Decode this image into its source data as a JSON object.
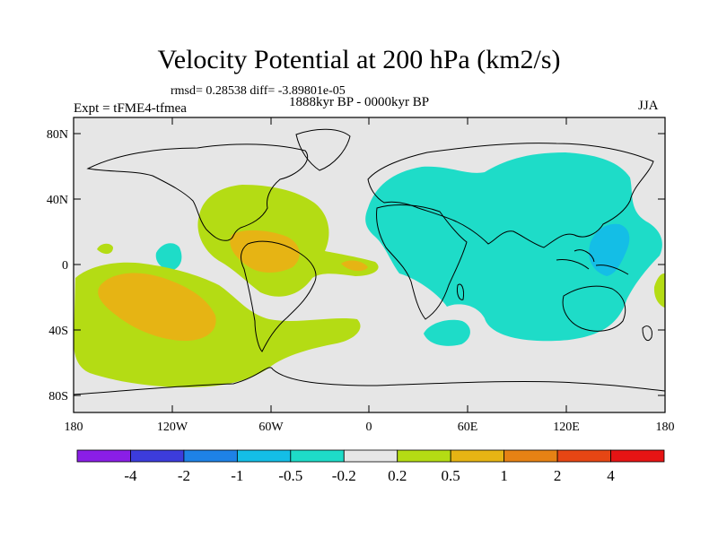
{
  "title": "Velocity Potential at 200 hPa (km2/s)",
  "stats": "rmsd= 0.28538 diff= -3.89801e-05",
  "period": "1888kyr BP - 0000kyr BP",
  "experiment": "Expt = tFME4-tfmea",
  "season": "JJA",
  "lat_ticks": [
    "80N",
    "40N",
    "0",
    "40S",
    "80S"
  ],
  "lon_ticks": [
    "180",
    "120W",
    "60W",
    "0",
    "60E",
    "120E",
    "180"
  ],
  "colorbar": {
    "labels": [
      "-4",
      "-2",
      "-1",
      "-0.5",
      "-0.2",
      "0.2",
      "0.5",
      "1",
      "2",
      "4"
    ],
    "colors": [
      "#8a1ee6",
      "#3c3cdc",
      "#1e82e6",
      "#14bee6",
      "#1edcc8",
      "#e6e6e6",
      "#b4dc14",
      "#e6b414",
      "#e68214",
      "#e64614",
      "#e61414"
    ]
  },
  "chart_data": {
    "type": "contour_map",
    "variable": "Velocity Potential at 200 hPa",
    "units": "km2/s",
    "levels": [
      -4,
      -2,
      -1,
      -0.5,
      -0.2,
      0.2,
      0.5,
      1,
      2,
      4
    ],
    "regions": [
      {
        "name": "asia-indian-ocean-negative",
        "level": "-0.5 to -0.2"
      },
      {
        "name": "west-pacific-core",
        "level": "-1 to -0.5"
      },
      {
        "name": "south-atlantic-africa-negative",
        "level": "-0.5 to -0.2"
      },
      {
        "name": "central-america-positive",
        "level": "0.2 to 0.5"
      },
      {
        "name": "caribbean-core",
        "level": "0.5 to 1"
      },
      {
        "name": "south-pacific-positive",
        "level": "0.2 to 0.5"
      },
      {
        "name": "south-pacific-core",
        "level": "0.5 to 1"
      },
      {
        "name": "atlantic-core",
        "level": "0.5 to 1"
      }
    ]
  }
}
